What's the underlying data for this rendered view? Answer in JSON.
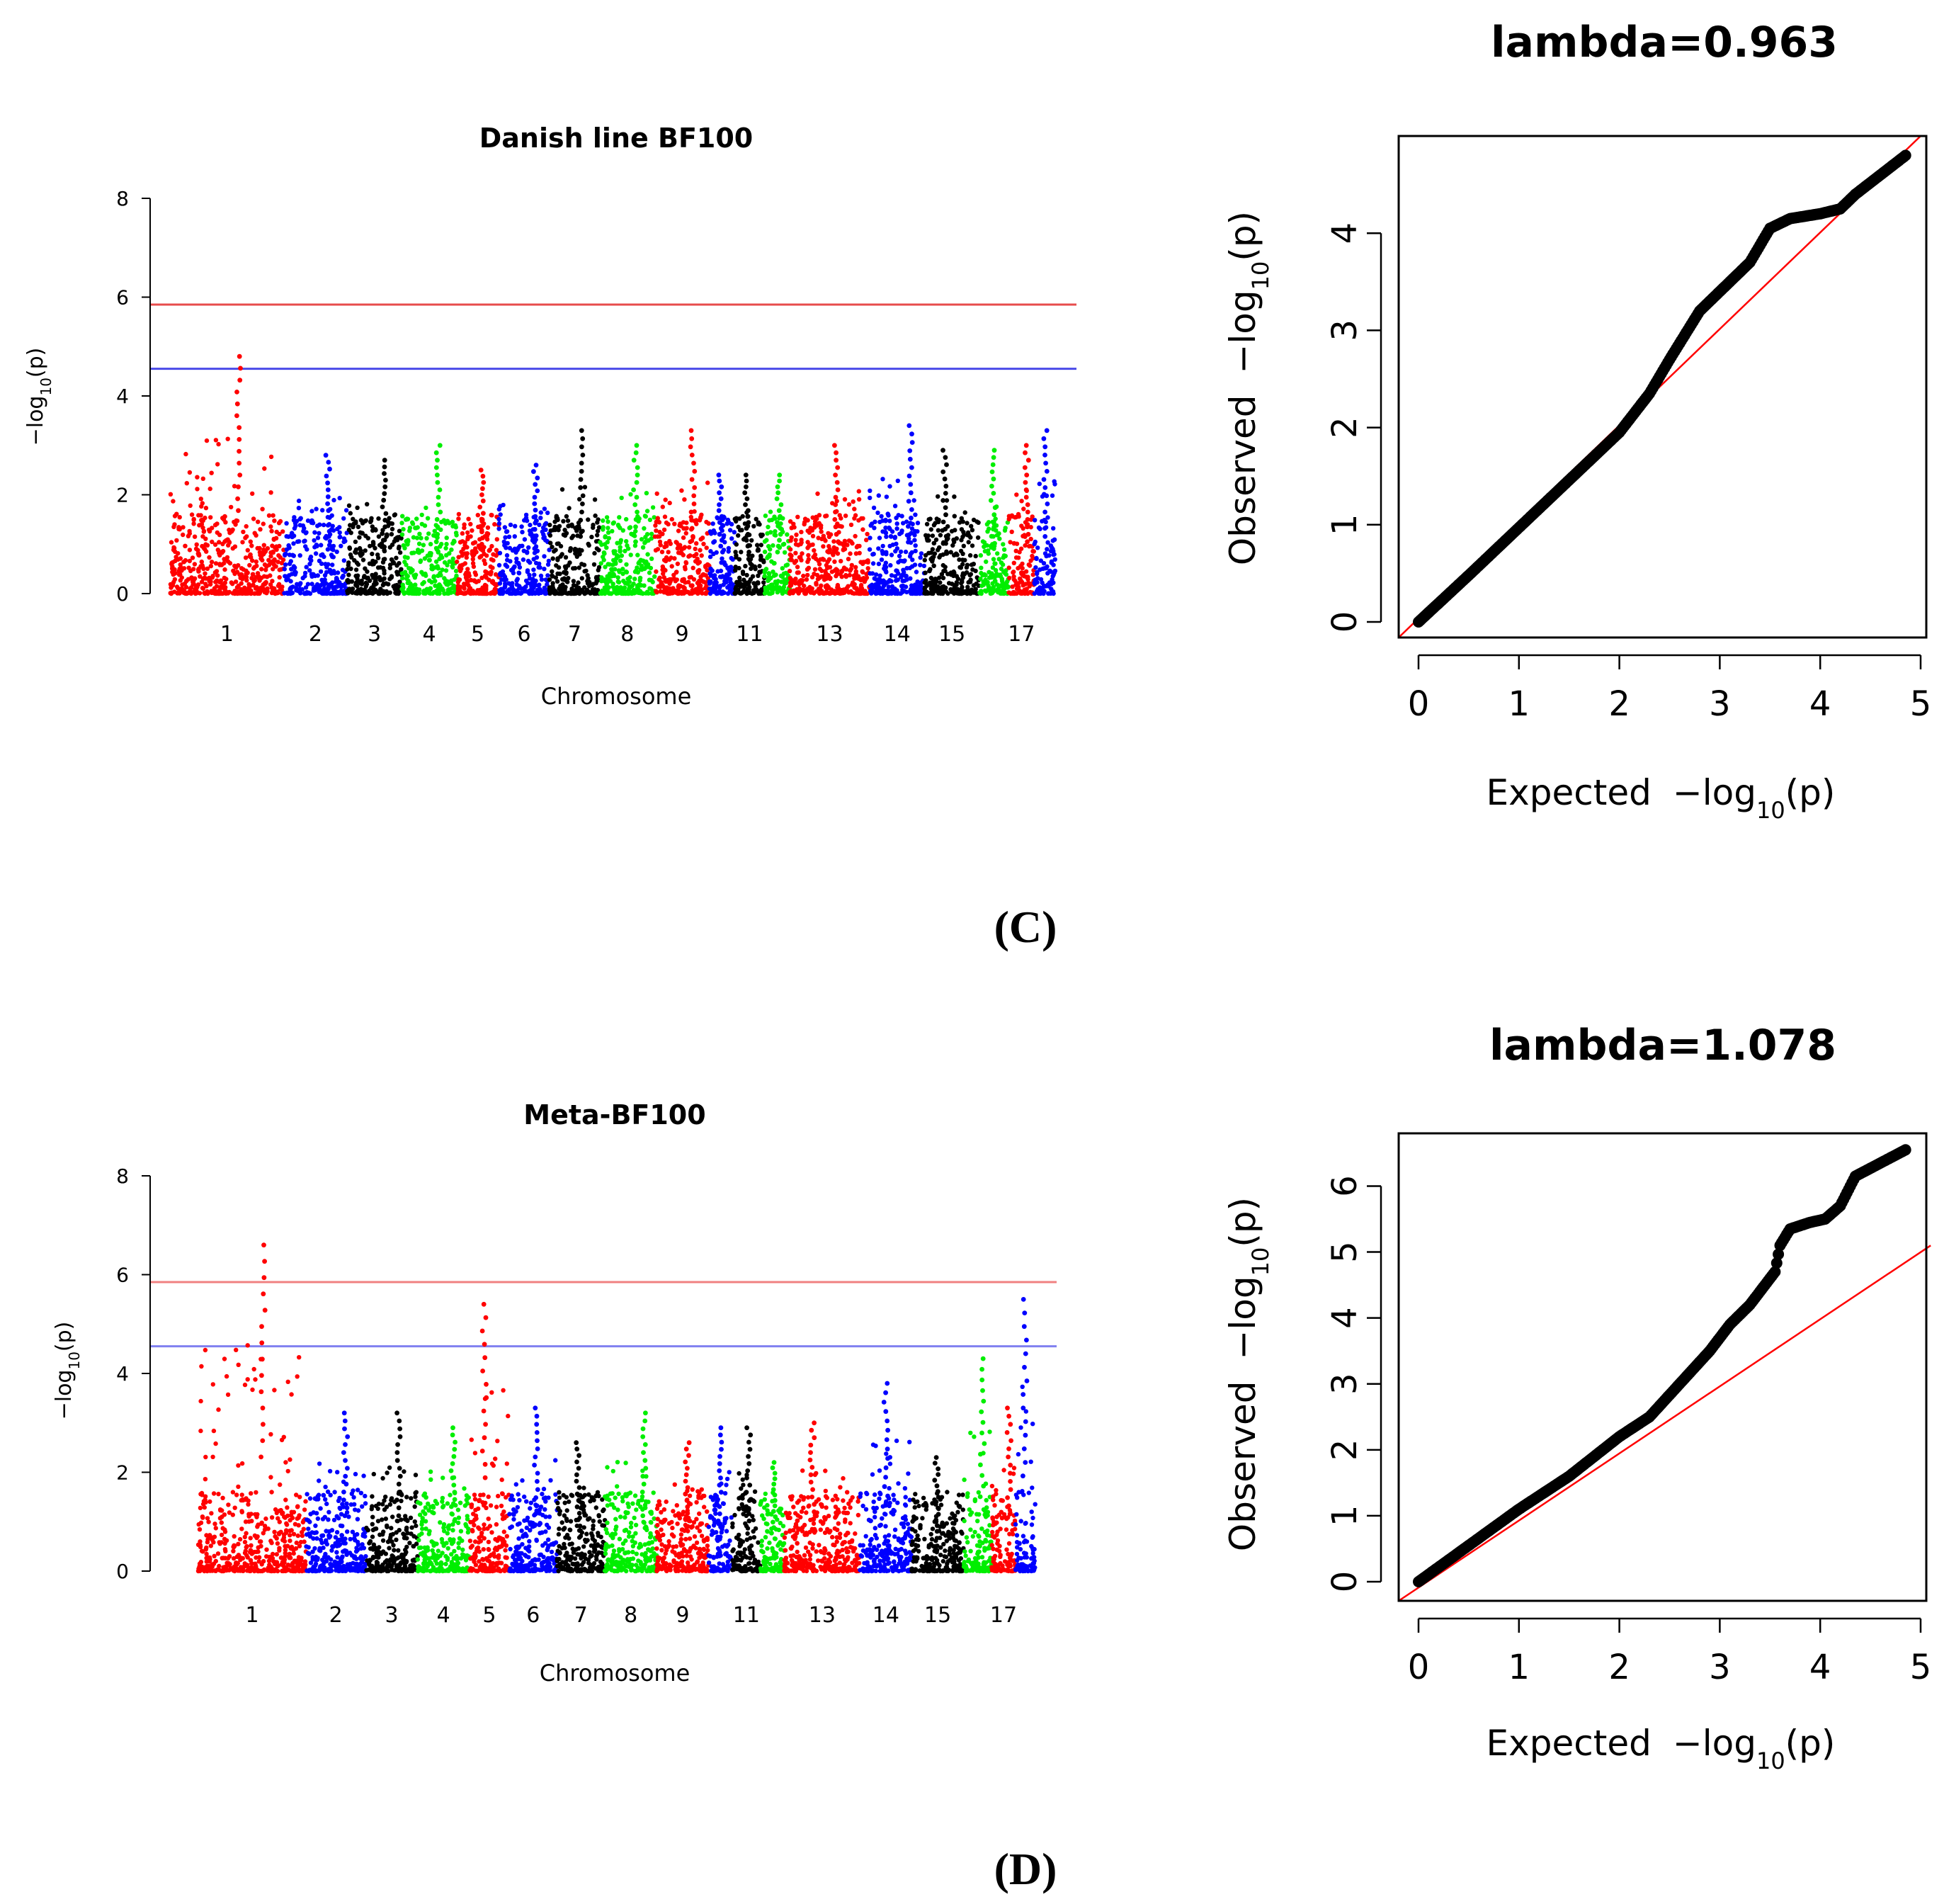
{
  "panels": [
    {
      "label": "(C)"
    },
    {
      "label": "(D)"
    }
  ],
  "chart_data": [
    {
      "type": "scatter",
      "subtype": "manhattan",
      "title": "Danish line BF100",
      "xlabel": "Chromosome",
      "ylabel": "−log",
      "ylabel_sub": "10",
      "ylabel_tail": "(p)",
      "ylim": [
        0,
        8
      ],
      "yticks": [
        "0",
        "2",
        "4",
        "6",
        "8"
      ],
      "chromosome_tick_labels": [
        "1",
        "2",
        "3",
        "4",
        "5",
        "6",
        "7",
        "8",
        "9",
        "11",
        "13",
        "14",
        "15",
        "17"
      ],
      "chromosome_count": 18,
      "colors": [
        "#ff0000",
        "#0000ff",
        "#000000",
        "#00ee00"
      ],
      "threshold_lines": [
        {
          "name": "genome-wide",
          "value": 5.85,
          "color": "#e74c4c"
        },
        {
          "name": "suggestive",
          "value": 4.55,
          "color": "#4a4ae8"
        }
      ],
      "chromosome_peak_values": [
        4.8,
        2.8,
        2.7,
        3.0,
        2.5,
        2.6,
        3.3,
        3.0,
        3.3,
        2.4,
        2.4,
        2.4,
        3.0,
        3.4,
        2.9,
        2.9,
        3.0,
        3.3
      ]
    },
    {
      "type": "scatter",
      "subtype": "qq",
      "title": "lambda=0.963",
      "xlabel": "Expected",
      "xlabel_tail": "−log",
      "xlabel_sub": "10",
      "xlabel_paren": "(p)",
      "ylabel": "Observed",
      "xlim": [
        0,
        5
      ],
      "ylim": [
        0,
        5
      ],
      "xticks": [
        "0",
        "1",
        "2",
        "3",
        "4",
        "5"
      ],
      "yticks": [
        "0",
        "1",
        "2",
        "3",
        "4"
      ],
      "points": [
        [
          0,
          0
        ],
        [
          0.5,
          0.48
        ],
        [
          1,
          0.97
        ],
        [
          1.5,
          1.46
        ],
        [
          2,
          1.95
        ],
        [
          2.3,
          2.35
        ],
        [
          2.5,
          2.7
        ],
        [
          2.8,
          3.2
        ],
        [
          3.0,
          3.4
        ],
        [
          3.3,
          3.7
        ],
        [
          3.5,
          4.05
        ],
        [
          3.7,
          4.15
        ],
        [
          4.0,
          4.2
        ],
        [
          4.2,
          4.25
        ],
        [
          4.35,
          4.4
        ],
        [
          4.85,
          4.8
        ]
      ],
      "reference_line": "y=x"
    },
    {
      "type": "scatter",
      "subtype": "manhattan",
      "title": "Meta-BF100",
      "xlabel": "Chromosome",
      "ylabel": "−log",
      "ylabel_sub": "10",
      "ylabel_tail": "(p)",
      "ylim": [
        0,
        8
      ],
      "yticks": [
        "0",
        "2",
        "4",
        "6",
        "8"
      ],
      "chromosome_tick_labels": [
        "1",
        "2",
        "3",
        "4",
        "5",
        "6",
        "7",
        "8",
        "9",
        "11",
        "13",
        "14",
        "15",
        "17"
      ],
      "chromosome_count": 18,
      "colors": [
        "#ff0000",
        "#0000ff",
        "#000000",
        "#00ee00"
      ],
      "threshold_lines": [
        {
          "name": "genome-wide",
          "value": 5.85,
          "color": "#f08080"
        },
        {
          "name": "suggestive",
          "value": 4.55,
          "color": "#8080f0"
        }
      ],
      "chromosome_peak_values": [
        6.6,
        3.2,
        3.2,
        2.9,
        5.4,
        3.3,
        2.6,
        3.2,
        2.6,
        2.9,
        2.9,
        2.2,
        3.0,
        3.8,
        2.3,
        4.3,
        3.3,
        5.5
      ]
    },
    {
      "type": "scatter",
      "subtype": "qq",
      "title": "lambda=1.078",
      "xlabel": "Expected",
      "xlabel_tail": "−log",
      "xlabel_sub": "10",
      "xlabel_paren": "(p)",
      "ylabel": "Observed",
      "xlim": [
        0,
        5
      ],
      "ylim": [
        0,
        6.8
      ],
      "xticks": [
        "0",
        "1",
        "2",
        "3",
        "4",
        "5"
      ],
      "yticks": [
        "0",
        "1",
        "2",
        "3",
        "4",
        "5",
        "6"
      ],
      "points": [
        [
          0,
          0
        ],
        [
          0.5,
          0.55
        ],
        [
          1,
          1.1
        ],
        [
          1.5,
          1.6
        ],
        [
          2,
          2.2
        ],
        [
          2.3,
          2.5
        ],
        [
          2.6,
          3.0
        ],
        [
          2.9,
          3.5
        ],
        [
          3.1,
          3.9
        ],
        [
          3.3,
          4.2
        ],
        [
          3.55,
          4.7
        ],
        [
          3.6,
          5.1
        ],
        [
          3.7,
          5.35
        ],
        [
          3.9,
          5.45
        ],
        [
          4.05,
          5.5
        ],
        [
          4.2,
          5.7
        ],
        [
          4.35,
          6.15
        ],
        [
          4.85,
          6.55
        ]
      ],
      "reference_line_slope": 1.0,
      "reference_line_end": [
        5,
        5.0
      ]
    }
  ]
}
